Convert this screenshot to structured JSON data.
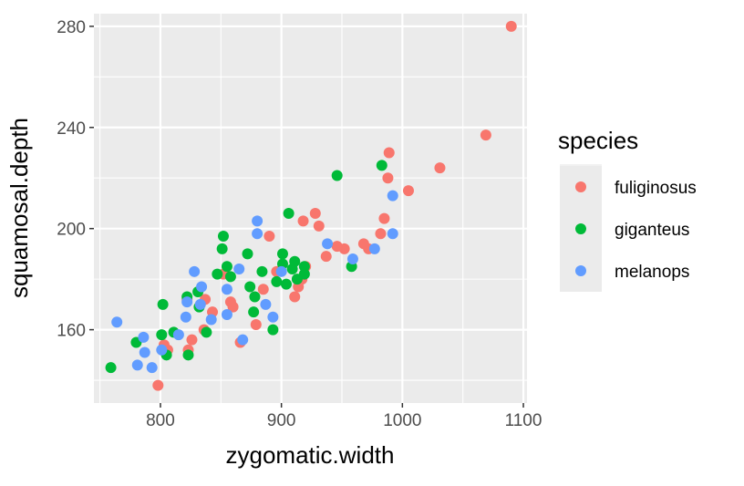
{
  "chart_data": {
    "type": "scatter",
    "title": "",
    "xlabel": "zygomatic.width",
    "ylabel": "squamosal.depth",
    "xlim": [
      745,
      1103
    ],
    "ylim": [
      131,
      285
    ],
    "xticks": [
      800,
      900,
      1000,
      1100
    ],
    "yticks": [
      160,
      200,
      240,
      280
    ],
    "grid": true,
    "legend": {
      "title": "species",
      "placement": "right"
    },
    "series": [
      {
        "name": "fuliginosus",
        "color": "#F8766D",
        "points": [
          [
            1090,
            280
          ],
          [
            1069,
            237
          ],
          [
            1031,
            224
          ],
          [
            1005,
            215
          ],
          [
            988,
            220
          ],
          [
            989,
            230
          ],
          [
            985,
            204
          ],
          [
            982,
            198
          ],
          [
            972,
            192
          ],
          [
            968,
            194
          ],
          [
            952,
            192
          ],
          [
            946,
            193
          ],
          [
            937,
            189
          ],
          [
            928,
            206
          ],
          [
            931,
            201
          ],
          [
            918,
            203
          ],
          [
            890,
            197
          ],
          [
            920,
            185
          ],
          [
            917,
            180
          ],
          [
            914,
            177
          ],
          [
            911,
            173
          ],
          [
            896,
            183
          ],
          [
            885,
            176
          ],
          [
            879,
            162
          ],
          [
            798,
            138
          ],
          [
            803,
            154
          ],
          [
            806,
            152
          ],
          [
            823,
            152
          ],
          [
            826,
            156
          ],
          [
            836,
            160
          ],
          [
            843,
            167
          ],
          [
            837,
            172
          ],
          [
            822,
            172
          ],
          [
            858,
            171
          ],
          [
            860,
            169
          ],
          [
            852,
            182
          ],
          [
            866,
            155
          ]
        ]
      },
      {
        "name": "giganteus",
        "color": "#00BA38",
        "points": [
          [
            759,
            145
          ],
          [
            780,
            155
          ],
          [
            802,
            170
          ],
          [
            801,
            158
          ],
          [
            805,
            150
          ],
          [
            811,
            159
          ],
          [
            823,
            150
          ],
          [
            822,
            173
          ],
          [
            831,
            175
          ],
          [
            832,
            169
          ],
          [
            838,
            159
          ],
          [
            852,
            197
          ],
          [
            851,
            192
          ],
          [
            855,
            185
          ],
          [
            847,
            182
          ],
          [
            858,
            181
          ],
          [
            872,
            190
          ],
          [
            874,
            177
          ],
          [
            878,
            173
          ],
          [
            877,
            167
          ],
          [
            946,
            221
          ],
          [
            983,
            225
          ],
          [
            906,
            206
          ],
          [
            901,
            190
          ],
          [
            911,
            187
          ],
          [
            919,
            185
          ],
          [
            909,
            184
          ],
          [
            901,
            186
          ],
          [
            913,
            180
          ],
          [
            919,
            182
          ],
          [
            896,
            179
          ],
          [
            904,
            178
          ],
          [
            884,
            183
          ],
          [
            893,
            160
          ],
          [
            958,
            185
          ]
        ]
      },
      {
        "name": "melanops",
        "color": "#619CFF",
        "points": [
          [
            764,
            163
          ],
          [
            786,
            157
          ],
          [
            787,
            151
          ],
          [
            781,
            146
          ],
          [
            793,
            145
          ],
          [
            801,
            152
          ],
          [
            815,
            158
          ],
          [
            821,
            165
          ],
          [
            828,
            183
          ],
          [
            834,
            177
          ],
          [
            833,
            170
          ],
          [
            822,
            171
          ],
          [
            842,
            164
          ],
          [
            855,
            176
          ],
          [
            855,
            166
          ],
          [
            865,
            184
          ],
          [
            868,
            156
          ],
          [
            880,
            203
          ],
          [
            880,
            198
          ],
          [
            992,
            213
          ],
          [
            992,
            198
          ],
          [
            977,
            192
          ],
          [
            959,
            188
          ],
          [
            938,
            194
          ],
          [
            900,
            183
          ],
          [
            887,
            170
          ],
          [
            893,
            165
          ]
        ]
      }
    ]
  }
}
